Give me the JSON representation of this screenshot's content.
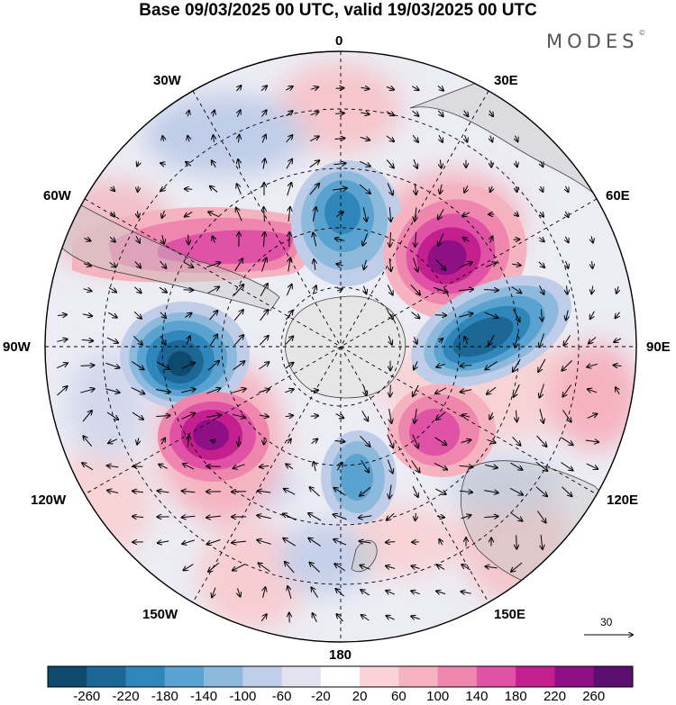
{
  "title": "Base 09/03/2025 00 UTC, valid 19/03/2025 00 UTC",
  "brand": "MODES",
  "brand_mark": "©",
  "longitude_labels": {
    "top": "0",
    "bottom": "180",
    "lon_30w": "30W",
    "lon_30e": "30E",
    "lon_60w": "60W",
    "lon_60e": "60E",
    "lon_90w": "90W",
    "lon_90e": "90E",
    "lon_120w": "120W",
    "lon_120e": "120E",
    "lon_150w": "150W",
    "lon_150e": "150E"
  },
  "reference_vector": {
    "label": "30"
  },
  "colorbar": {
    "ticks": [
      "-260",
      "-220",
      "-180",
      "-140",
      "-100",
      "-60",
      "-20",
      "20",
      "60",
      "100",
      "140",
      "180",
      "220",
      "260"
    ],
    "colors": [
      "#0d4a6e",
      "#1c6796",
      "#2f86ba",
      "#5aa2cf",
      "#8db9dd",
      "#bfcde8",
      "#e3e3f0",
      "#ffffff",
      "#f9d3d6",
      "#f5b3c0",
      "#ee86ae",
      "#df52a5",
      "#c31f8e",
      "#8e0f86",
      "#5a0f6e"
    ]
  },
  "anomaly_centers": [
    {
      "name": "positive-anomaly-60w",
      "value": 190
    },
    {
      "name": "negative-anomaly-0",
      "value": -180
    },
    {
      "name": "positive-anomaly-60e",
      "value": 240
    },
    {
      "name": "negative-anomaly-90e",
      "value": -220
    },
    {
      "name": "negative-anomaly-90w",
      "value": -260
    },
    {
      "name": "positive-anomaly-120w",
      "value": 240
    },
    {
      "name": "positive-anomaly-120e",
      "value": 150
    },
    {
      "name": "negative-anomaly-150e",
      "value": -140
    }
  ]
}
